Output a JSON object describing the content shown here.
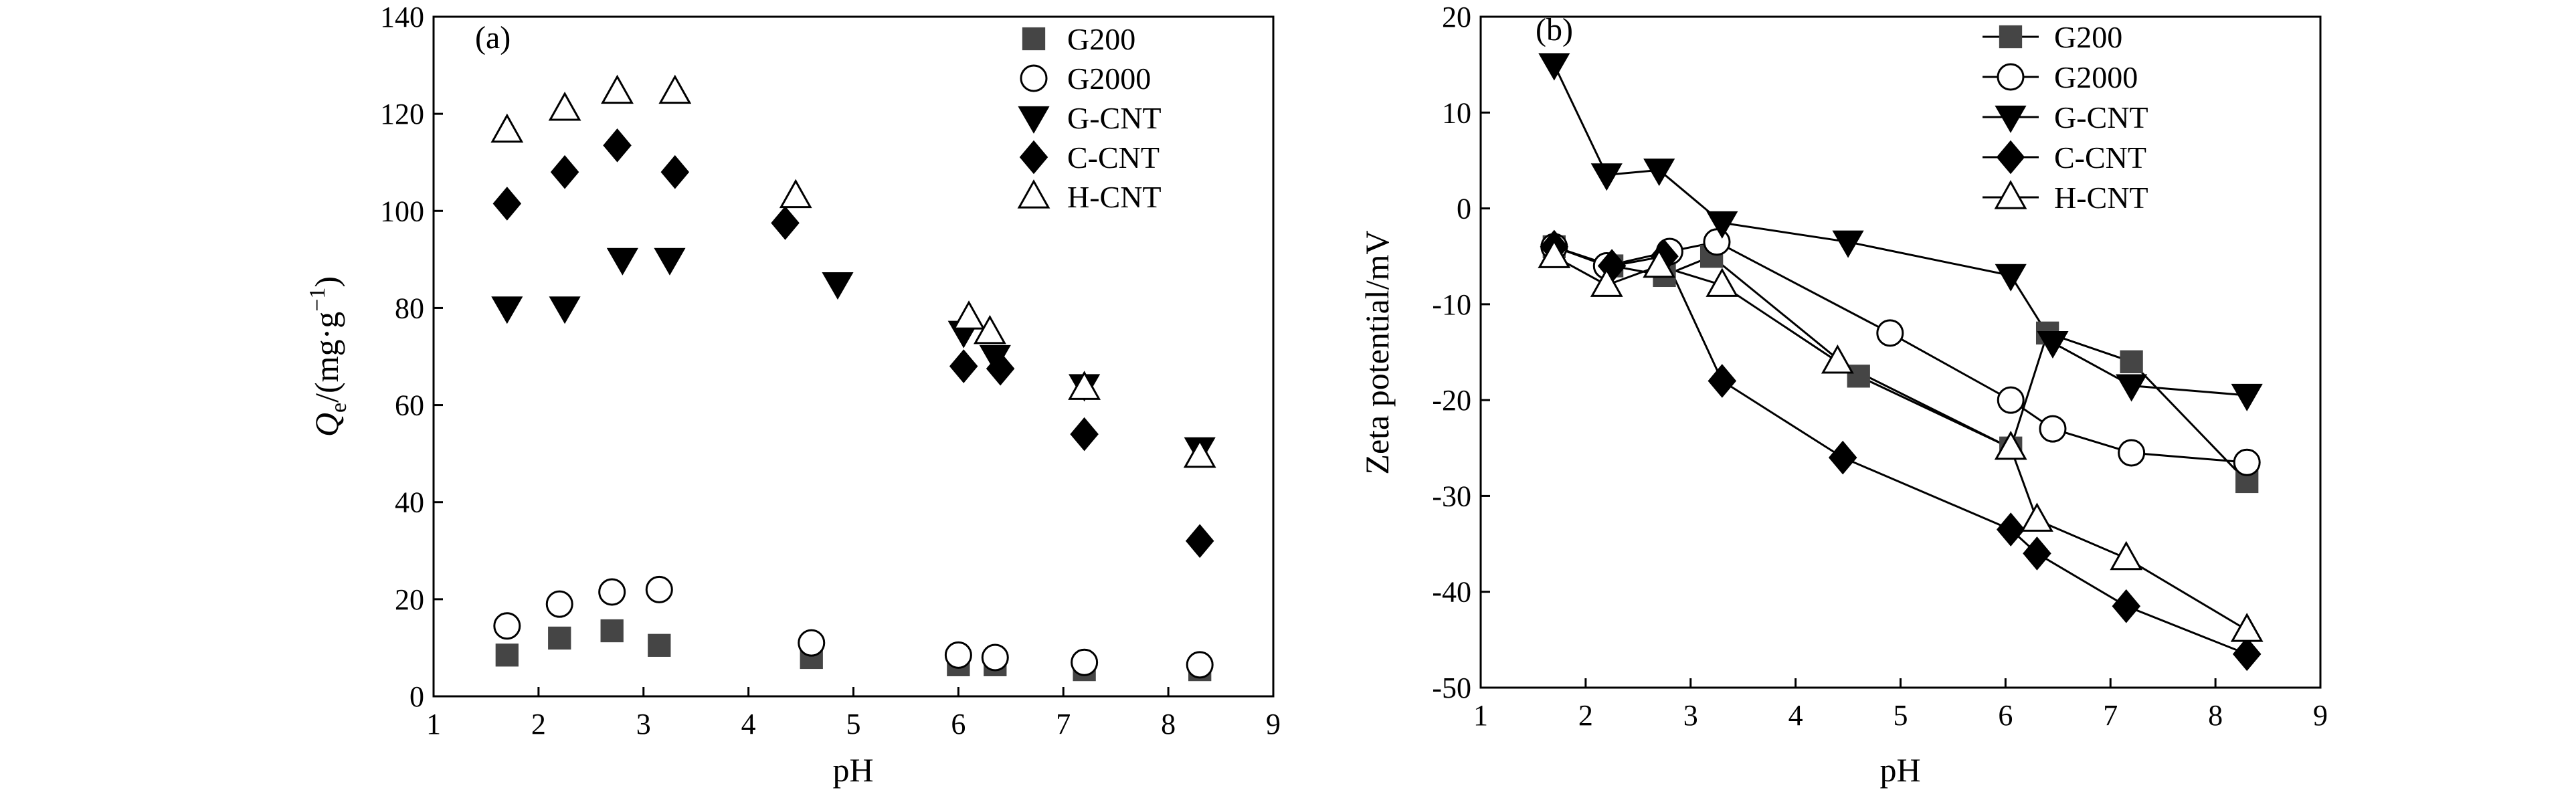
{
  "chart_data": [
    {
      "type": "scatter",
      "panel_label": "(a)",
      "xlabel": "pH",
      "ylabel": "Qe/(mg·g⁻¹)",
      "ylabel_parts": {
        "symbol": "Q",
        "subscript": "e",
        "unit_prefix": "/(mg·g",
        "superscript": "−1",
        "unit_suffix": ")"
      },
      "xlim": [
        1,
        9
      ],
      "ylim": [
        0,
        140
      ],
      "xticks": [
        1,
        2,
        3,
        4,
        5,
        6,
        7,
        8,
        9
      ],
      "yticks": [
        0,
        20,
        40,
        60,
        80,
        100,
        120,
        140
      ],
      "grid": false,
      "legend_position": "top-right",
      "series": [
        {
          "name": "G200",
          "marker": "square-filled",
          "points": [
            [
              1.7,
              8.5
            ],
            [
              2.2,
              12
            ],
            [
              2.7,
              13.5
            ],
            [
              3.15,
              10.5
            ],
            [
              4.6,
              8
            ],
            [
              6.0,
              6.5
            ],
            [
              6.35,
              6.5
            ],
            [
              7.2,
              5.5
            ],
            [
              8.3,
              5.5
            ]
          ]
        },
        {
          "name": "G2000",
          "marker": "circle-open",
          "points": [
            [
              1.7,
              14.5
            ],
            [
              2.2,
              19
            ],
            [
              2.7,
              21.5
            ],
            [
              3.15,
              22
            ],
            [
              4.6,
              11
            ],
            [
              6.0,
              8.5
            ],
            [
              6.35,
              8
            ],
            [
              7.2,
              7
            ],
            [
              8.3,
              6.5
            ]
          ]
        },
        {
          "name": "G-CNT",
          "marker": "triangle-down-filled",
          "points": [
            [
              1.7,
              80
            ],
            [
              2.25,
              80
            ],
            [
              2.8,
              90
            ],
            [
              3.25,
              90
            ],
            [
              4.85,
              85
            ],
            [
              6.05,
              75
            ],
            [
              6.35,
              70
            ],
            [
              7.2,
              64
            ],
            [
              8.3,
              51
            ]
          ]
        },
        {
          "name": "C-CNT",
          "marker": "diamond-filled",
          "points": [
            [
              1.7,
              101.5
            ],
            [
              2.25,
              108
            ],
            [
              2.75,
              113.5
            ],
            [
              3.3,
              108
            ],
            [
              4.35,
              97.5
            ],
            [
              6.05,
              68
            ],
            [
              6.4,
              67.5
            ],
            [
              7.2,
              54
            ],
            [
              8.3,
              32
            ]
          ]
        },
        {
          "name": "H-CNT",
          "marker": "triangle-up-open",
          "points": [
            [
              1.7,
              116.5
            ],
            [
              2.25,
              121
            ],
            [
              2.75,
              124.5
            ],
            [
              3.3,
              124.5
            ],
            [
              4.45,
              103
            ],
            [
              6.1,
              78
            ],
            [
              6.3,
              75
            ],
            [
              7.2,
              63.5
            ],
            [
              8.3,
              49.5
            ]
          ]
        }
      ]
    },
    {
      "type": "line",
      "panel_label": "(b)",
      "xlabel": "pH",
      "ylabel": "Zeta potential/mV",
      "xlim": [
        1,
        9
      ],
      "ylim": [
        -50,
        20
      ],
      "xticks": [
        1,
        2,
        3,
        4,
        5,
        6,
        7,
        8,
        9
      ],
      "yticks": [
        -50,
        -40,
        -30,
        -20,
        -10,
        0,
        10,
        20
      ],
      "grid": false,
      "legend_position": "top-right",
      "series": [
        {
          "name": "G200",
          "marker": "square-filled",
          "points": [
            [
              1.7,
              -4
            ],
            [
              2.25,
              -6
            ],
            [
              2.75,
              -7
            ],
            [
              3.2,
              -5
            ],
            [
              4.6,
              -17.5
            ],
            [
              6.05,
              -25
            ],
            [
              6.4,
              -13
            ],
            [
              7.2,
              -16
            ],
            [
              8.3,
              -28.5
            ]
          ]
        },
        {
          "name": "G2000",
          "marker": "circle-open",
          "points": [
            [
              1.7,
              -4
            ],
            [
              2.2,
              -6
            ],
            [
              2.8,
              -4.5
            ],
            [
              3.25,
              -3.5
            ],
            [
              4.9,
              -13
            ],
            [
              6.05,
              -20
            ],
            [
              6.45,
              -23
            ],
            [
              7.2,
              -25.5
            ],
            [
              8.3,
              -26.5
            ]
          ]
        },
        {
          "name": "G-CNT",
          "marker": "triangle-down-filled",
          "points": [
            [
              1.7,
              15
            ],
            [
              2.2,
              3.5
            ],
            [
              2.7,
              4
            ],
            [
              3.3,
              -1.5
            ],
            [
              4.5,
              -3.5
            ],
            [
              6.05,
              -7
            ],
            [
              6.45,
              -14
            ],
            [
              7.2,
              -18.5
            ],
            [
              8.3,
              -19.5
            ]
          ]
        },
        {
          "name": "C-CNT",
          "marker": "diamond-filled",
          "points": [
            [
              1.7,
              -4
            ],
            [
              2.25,
              -6
            ],
            [
              2.75,
              -5
            ],
            [
              3.3,
              -18
            ],
            [
              4.45,
              -26
            ],
            [
              6.05,
              -33.5
            ],
            [
              6.3,
              -36
            ],
            [
              7.15,
              -41.5
            ],
            [
              8.3,
              -46.5
            ]
          ]
        },
        {
          "name": "H-CNT",
          "marker": "triangle-up-open",
          "points": [
            [
              1.7,
              -5
            ],
            [
              2.2,
              -8
            ],
            [
              2.7,
              -6
            ],
            [
              3.3,
              -8
            ],
            [
              4.4,
              -16
            ],
            [
              6.05,
              -25
            ],
            [
              6.3,
              -32.5
            ],
            [
              7.15,
              -36.5
            ],
            [
              8.3,
              -44
            ]
          ]
        }
      ]
    }
  ]
}
